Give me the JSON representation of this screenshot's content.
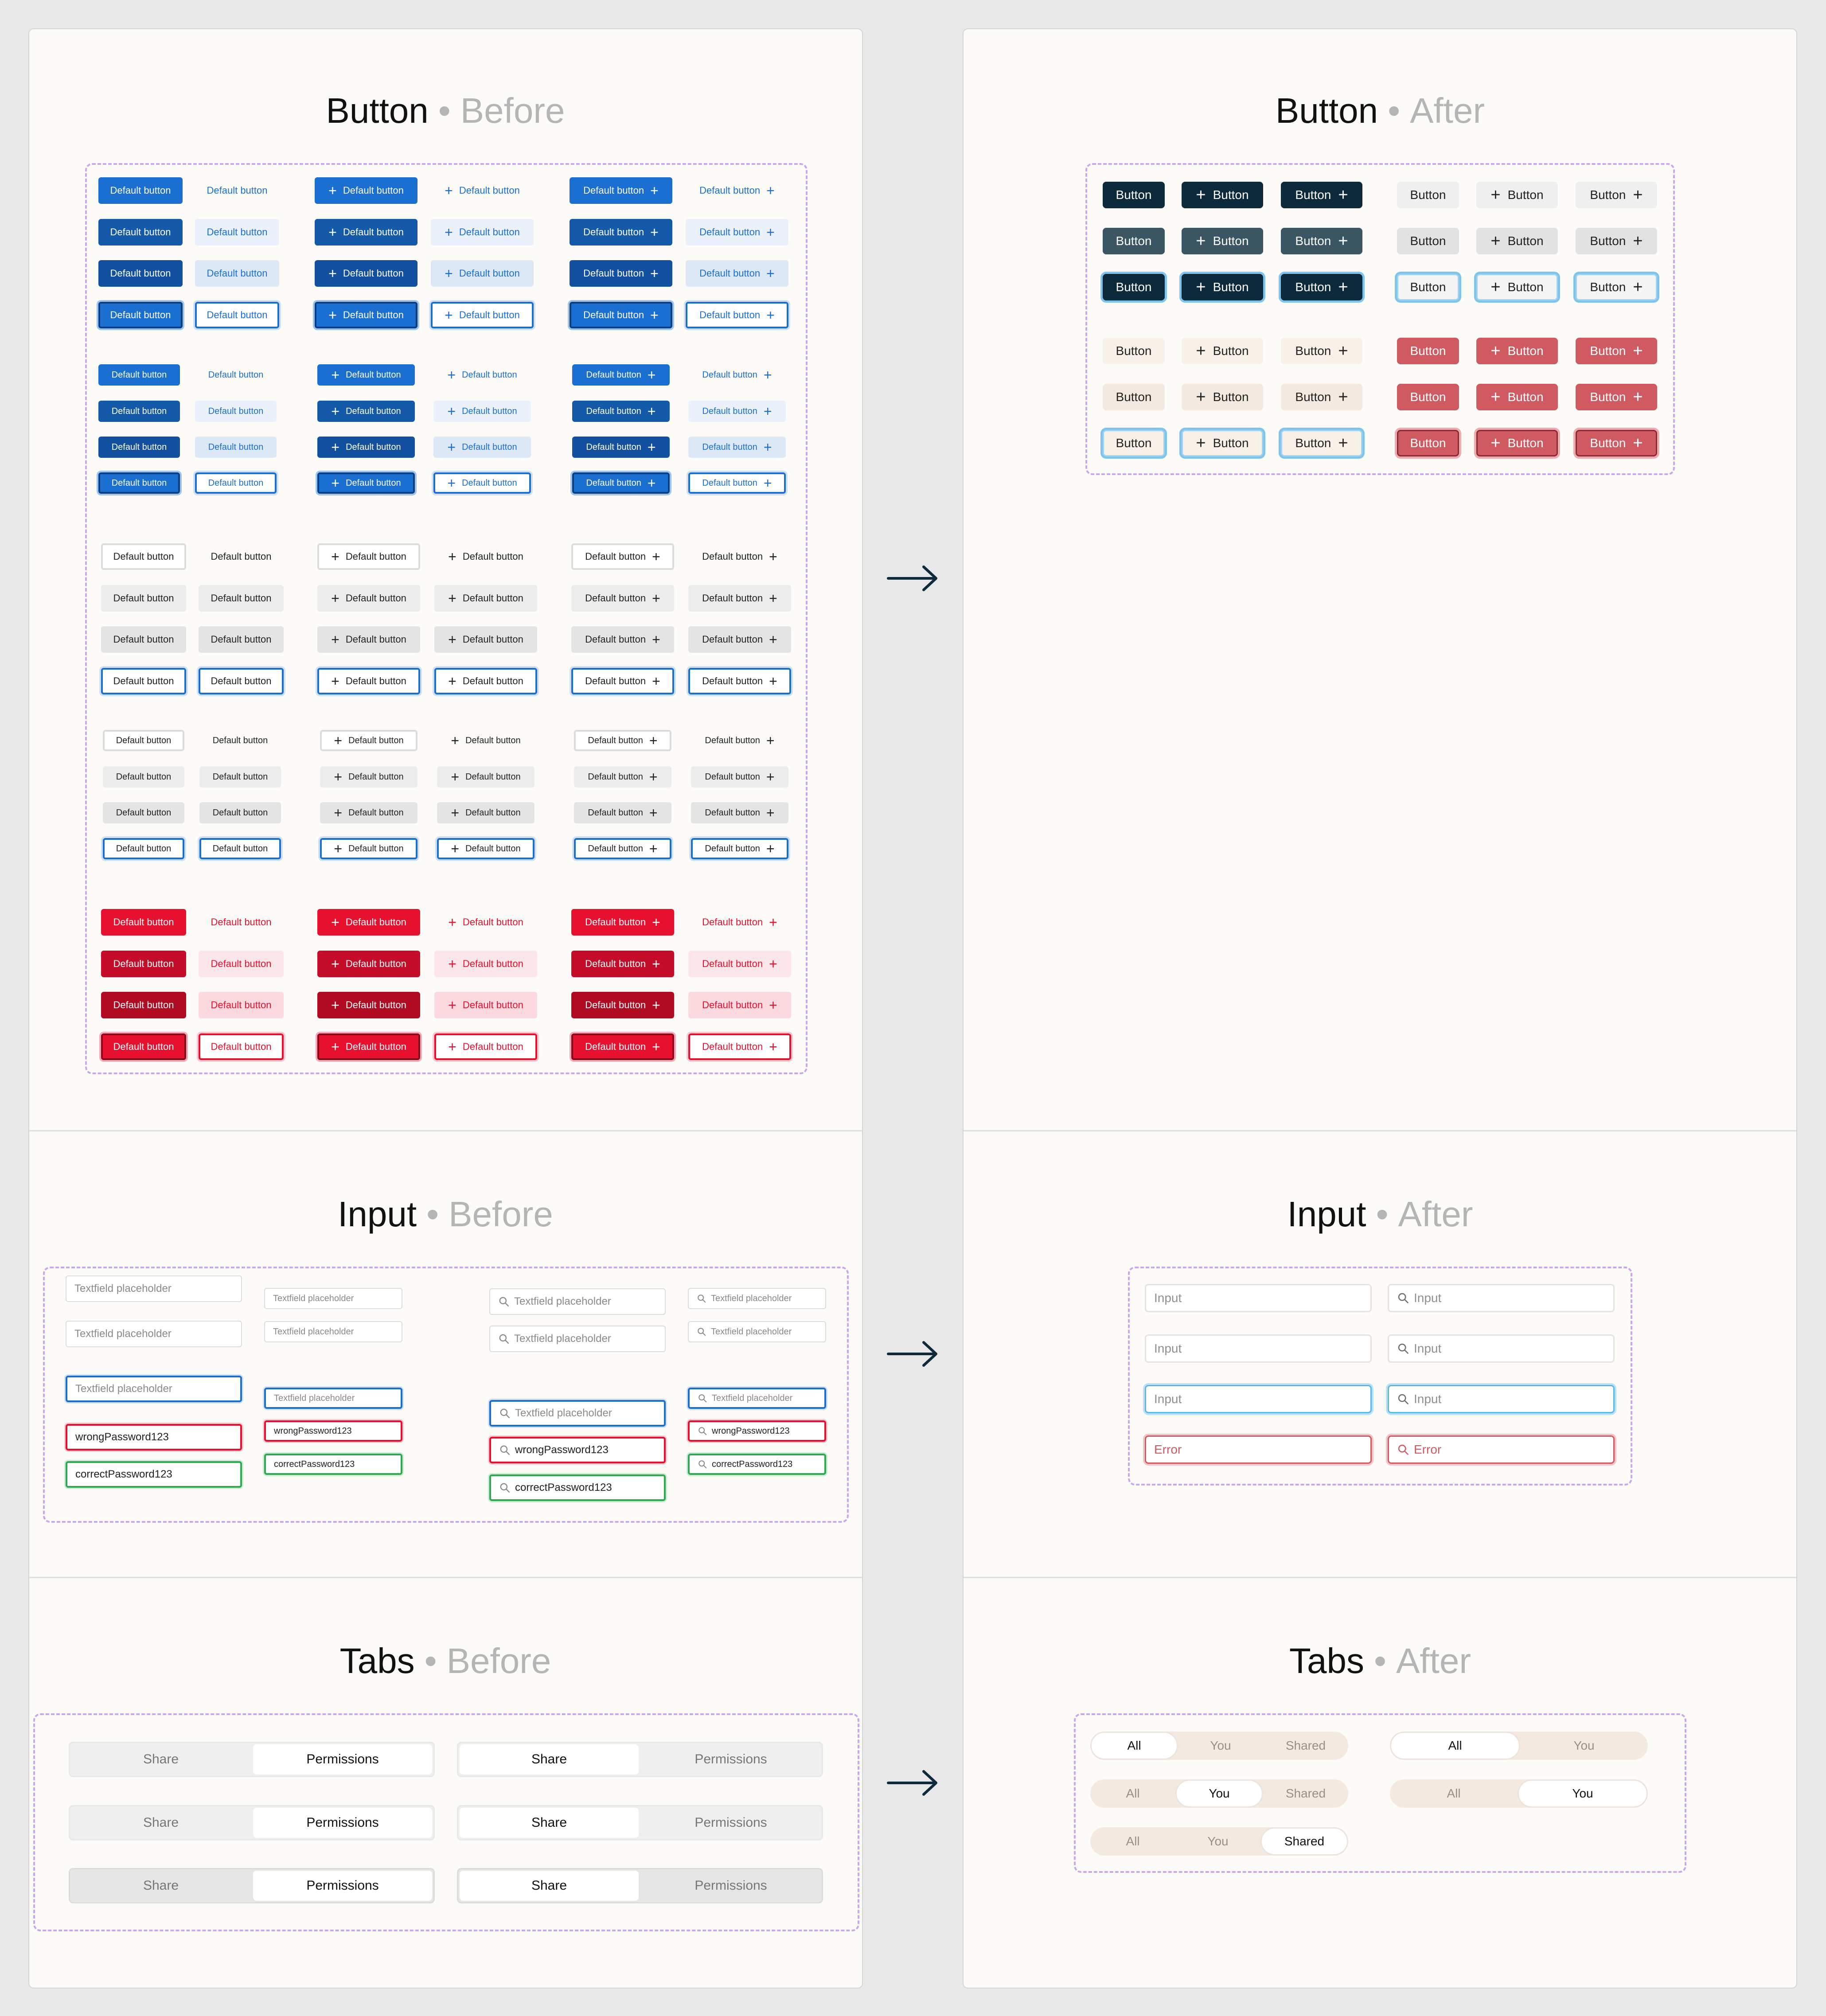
{
  "sections": {
    "button": {
      "name": "Button"
    },
    "input": {
      "name": "Input"
    },
    "tabs": {
      "name": "Tabs"
    },
    "before_label": "Before",
    "after_label": "After",
    "separator": "•"
  },
  "before": {
    "button_label": "Default button",
    "input_placeholder": "Textfield placeholder",
    "input_wrong": "wrongPassword123",
    "input_correct": "correctPassword123",
    "tabs": [
      "Share",
      "Permissions"
    ]
  },
  "after": {
    "button_label": "Button",
    "input_placeholder": "Input",
    "input_error": "Error",
    "tabs_three": [
      "All",
      "You",
      "Shared"
    ],
    "tabs_two": [
      "All",
      "You"
    ]
  },
  "icons": {
    "plus": "plus-icon",
    "search": "search-icon",
    "arrow": "arrow-right-icon"
  },
  "colors": {
    "blue": "#1a6fd1",
    "blue_dark": "#155aa8",
    "blue_light": "#dde8f7",
    "red": "#e8102f",
    "red_dark": "#c40d28",
    "red_light": "#fbd9df",
    "navy": "#0d2a3c",
    "slate": "#3a5564",
    "beige": "#f3e9e0",
    "muted_red": "#d05a62",
    "focus_ring": "#7fc4ec",
    "dash": "#c9a6ee"
  }
}
